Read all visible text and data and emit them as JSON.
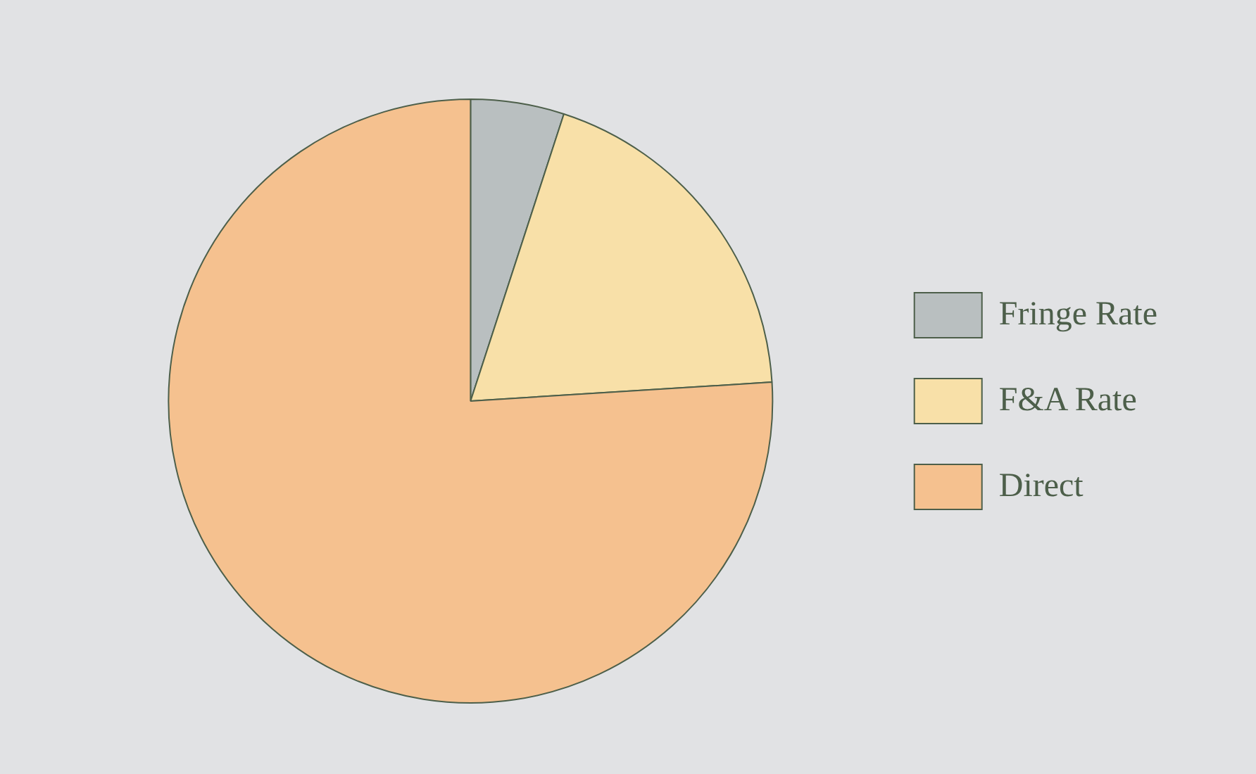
{
  "chart_data": {
    "type": "pie",
    "categories": [
      "Fringe Rate",
      "F&A Rate",
      "Direct"
    ],
    "values": [
      5,
      19,
      76
    ],
    "colors": [
      "#b9bfc0",
      "#f8e0a8",
      "#f5c18f"
    ],
    "legend": "right"
  }
}
